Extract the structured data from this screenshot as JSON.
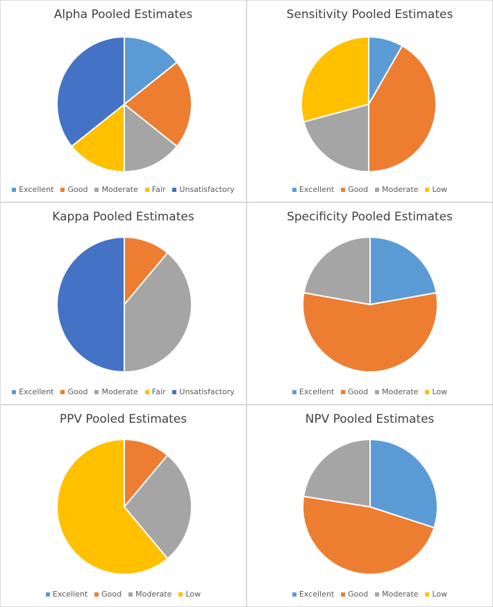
{
  "colors": {
    "Excellent": "#5B9BD5",
    "Good": "#ED7D31",
    "Moderate": "#A5A5A5",
    "Fair": "#FFC000",
    "Low": "#FFC000",
    "Unsatisfactory": "#4472C4"
  },
  "chart_data": [
    {
      "type": "pie",
      "title": "Alpha Pooled Estimates",
      "categories": [
        "Excellent",
        "Good",
        "Moderate",
        "Fair",
        "Unsatisfactory"
      ],
      "values": [
        14.3,
        21.4,
        14.3,
        14.3,
        35.7
      ],
      "legend_position": "bottom"
    },
    {
      "type": "pie",
      "title": "Sensitivity Pooled Estimates",
      "categories": [
        "Excellent",
        "Good",
        "Moderate",
        "Low"
      ],
      "values": [
        8.3,
        41.7,
        20.8,
        29.2
      ],
      "legend_position": "bottom"
    },
    {
      "type": "pie",
      "title": "Kappa Pooled Estimates",
      "categories": [
        "Excellent",
        "Good",
        "Moderate",
        "Fair",
        "Unsatisfactory"
      ],
      "values": [
        0,
        11.1,
        38.9,
        0,
        50
      ],
      "legend_position": "bottom"
    },
    {
      "type": "pie",
      "title": "Specificity Pooled Estimates",
      "categories": [
        "Excellent",
        "Good",
        "Moderate",
        "Low"
      ],
      "values": [
        22.2,
        55.6,
        22.2,
        0
      ],
      "legend_position": "bottom"
    },
    {
      "type": "pie",
      "title": "PPV Pooled Estimates",
      "categories": [
        "Excellent",
        "Good",
        "Moderate",
        "Low"
      ],
      "values": [
        0,
        11.1,
        27.8,
        61.1
      ],
      "legend_position": "bottom"
    },
    {
      "type": "pie",
      "title": "NPV Pooled Estimates",
      "categories": [
        "Excellent",
        "Good",
        "Moderate",
        "Low"
      ],
      "values": [
        30,
        47.5,
        22.5,
        0
      ],
      "legend_position": "bottom"
    }
  ]
}
